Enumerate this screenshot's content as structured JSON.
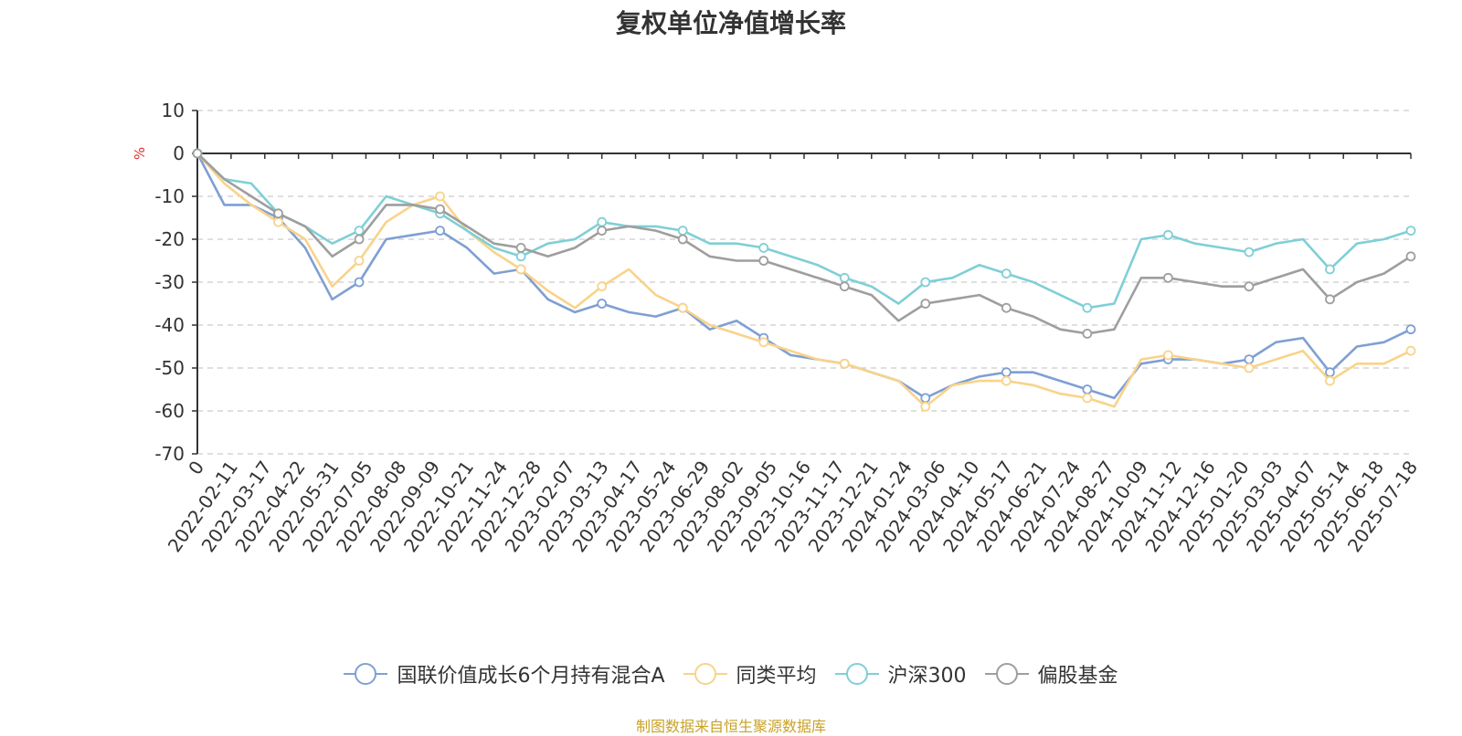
{
  "chart_data": {
    "type": "line",
    "title": "复权单位净值增长率",
    "ylabel": "%",
    "ylim": [
      -70,
      10
    ],
    "yticks": [
      10,
      0,
      -10,
      -20,
      -30,
      -40,
      -50,
      -60,
      -70
    ],
    "x_ticks": [
      "0",
      "2022-02-11",
      "2022-03-17",
      "2022-04-22",
      "2022-05-31",
      "2022-07-05",
      "2022-08-08",
      "2022-09-09",
      "2022-10-21",
      "2022-11-24",
      "2022-12-28",
      "2023-02-07",
      "2023-03-13",
      "2023-04-17",
      "2023-05-24",
      "2023-06-29",
      "2023-08-02",
      "2023-09-05",
      "2023-10-16",
      "2023-11-17",
      "2023-12-21",
      "2024-01-24",
      "2024-03-06",
      "2024-04-10",
      "2024-05-17",
      "2024-06-21",
      "2024-07-24",
      "2024-08-27",
      "2024-10-09",
      "2024-11-12",
      "2024-12-16",
      "2025-01-20",
      "2025-03-03",
      "2025-04-07",
      "2025-05-14",
      "2025-06-18",
      "2025-07-18"
    ],
    "grid": true,
    "legend_position": "bottom",
    "series": [
      {
        "name": "国联价值成长6个月持有混合A",
        "color": "#7f9fd3",
        "values": [
          0,
          -12,
          -12,
          -15,
          -22,
          -34,
          -30,
          -20,
          -19,
          -18,
          -22,
          -28,
          -27,
          -34,
          -37,
          -35,
          -37,
          -38,
          -36,
          -41,
          -39,
          -43,
          -47,
          -48,
          -49,
          -51,
          -53,
          -57,
          -54,
          -52,
          -51,
          -51,
          -53,
          -55,
          -57,
          -49,
          -48,
          -48,
          -49,
          -48,
          -44,
          -43,
          -51,
          -45,
          -44,
          -41
        ]
      },
      {
        "name": "同类平均",
        "color": "#f9d38a",
        "values": [
          0,
          -7,
          -12,
          -16,
          -20,
          -31,
          -25,
          -16,
          -12,
          -10,
          -18,
          -23,
          -27,
          -32,
          -36,
          -31,
          -27,
          -33,
          -36,
          -40,
          -42,
          -44,
          -46,
          -48,
          -49,
          -51,
          -53,
          -59,
          -54,
          -53,
          -53,
          -54,
          -56,
          -57,
          -59,
          -48,
          -47,
          -48,
          -49,
          -50,
          -48,
          -46,
          -53,
          -49,
          -49,
          -46
        ]
      },
      {
        "name": "沪深300",
        "color": "#7fcfd6",
        "values": [
          0,
          -6,
          -7,
          -14,
          -17,
          -21,
          -18,
          -10,
          -12,
          -14,
          -18,
          -22,
          -24,
          -21,
          -20,
          -16,
          -17,
          -17,
          -18,
          -21,
          -21,
          -22,
          -24,
          -26,
          -29,
          -31,
          -35,
          -30,
          -29,
          -26,
          -28,
          -30,
          -33,
          -36,
          -35,
          -20,
          -19,
          -21,
          -22,
          -23,
          -21,
          -20,
          -27,
          -21,
          -20,
          -18
        ]
      },
      {
        "name": "偏股基金",
        "color": "#9e9e9e",
        "values": [
          0,
          -6,
          -10,
          -14,
          -17,
          -24,
          -20,
          -12,
          -12,
          -13,
          -17,
          -21,
          -22,
          -24,
          -22,
          -18,
          -17,
          -18,
          -20,
          -24,
          -25,
          -25,
          -27,
          -29,
          -31,
          -33,
          -39,
          -35,
          -34,
          -33,
          -36,
          -38,
          -41,
          -42,
          -41,
          -29,
          -29,
          -30,
          -31,
          -31,
          -29,
          -27,
          -34,
          -30,
          -28,
          -24
        ]
      }
    ]
  },
  "source_text": "制图数据来自恒生聚源数据库"
}
